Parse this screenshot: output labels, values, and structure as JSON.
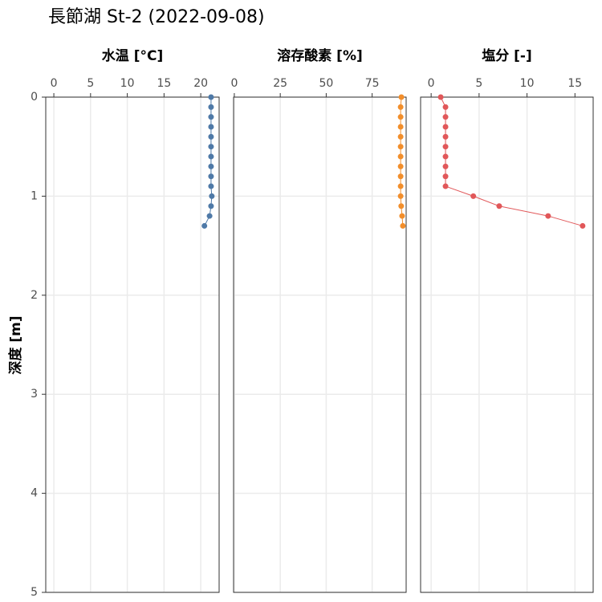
{
  "title": "長節湖 St-2 (2022-09-08)",
  "chart_data": [
    {
      "type": "line",
      "title": "水温 [°C]",
      "color": "#4e79a7",
      "ylabel": "深度 [m]",
      "ylim": [
        0,
        5
      ],
      "yticks": [
        0,
        1,
        2,
        3,
        4,
        5
      ],
      "depth": [
        0,
        0.1,
        0.2,
        0.3,
        0.4,
        0.5,
        0.6,
        0.7,
        0.8,
        0.9,
        1.0,
        1.1,
        1.2,
        1.3
      ],
      "values": [
        21.4,
        21.4,
        21.4,
        21.4,
        21.4,
        21.4,
        21.4,
        21.4,
        21.4,
        21.4,
        21.5,
        21.4,
        21.2,
        20.5
      ],
      "xlim": [
        -1.1,
        22.5
      ],
      "xticks": [
        0,
        5,
        10,
        15,
        20
      ],
      "grid": true
    },
    {
      "type": "line",
      "title": "溶存酸素 [%]",
      "color": "#f28e2b",
      "depth": [
        0,
        0.1,
        0.2,
        0.3,
        0.4,
        0.5,
        0.6,
        0.7,
        0.8,
        0.9,
        1.0,
        1.1,
        1.2,
        1.3
      ],
      "values": [
        90.9,
        90.5,
        90.5,
        90.5,
        90.5,
        90.5,
        90.5,
        90.5,
        90.5,
        90.5,
        90.5,
        90.8,
        91.3,
        91.7
      ],
      "xlim": [
        -0.4,
        93.5
      ],
      "xticks": [
        0,
        25,
        50,
        75
      ],
      "grid": true
    },
    {
      "type": "line",
      "title": "塩分 [-]",
      "color": "#e15759",
      "depth": [
        0,
        0.1,
        0.2,
        0.3,
        0.4,
        0.5,
        0.6,
        0.7,
        0.8,
        0.9,
        1.0,
        1.1,
        1.2,
        1.3
      ],
      "values": [
        1.0,
        1.5,
        1.5,
        1.5,
        1.5,
        1.5,
        1.5,
        1.5,
        1.5,
        1.5,
        4.4,
        7.1,
        12.2,
        15.8
      ],
      "xlim": [
        -1.1,
        16.9
      ],
      "xticks": [
        0,
        5,
        10,
        15
      ],
      "grid": true
    }
  ]
}
